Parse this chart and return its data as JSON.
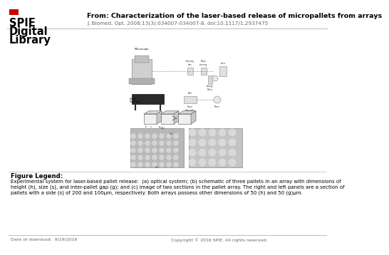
{
  "background_color": "#ffffff",
  "logo_text_line1": "SPIE",
  "logo_text_line2": "Digital",
  "logo_text_line3": "Library",
  "title_text": "From: Characterization of the laser-based release of micropallets from arrays",
  "journal_ref": "J. Biomed. Opt. 2008;13(3):034007-034007-8. doi:10.1117/1.2937475",
  "figure_legend_header": "Figure Legend:",
  "figure_legend_body": "Experimental system for laser-based pallet release:  (a) optical system; (b) schematic of three pallets in an array with dimensions of\nheight (h), size (s), and inter-pallet gap (g); and (c) image of two sections in the pallet array. The right and left panels are a section of\npallets with a side (s) of 200 and 100μm, respectively. Both arrays possess other dimensions of 50 (h) and 50 (g)μm.",
  "footer_left": "Date of download:  9/19/2016",
  "footer_right": "Copyright © 2016 SPIE. All rights reserved.",
  "separator_color": "#bbbbbb",
  "text_color": "#000000",
  "gray_color": "#666666",
  "red_color": "#cc0000"
}
